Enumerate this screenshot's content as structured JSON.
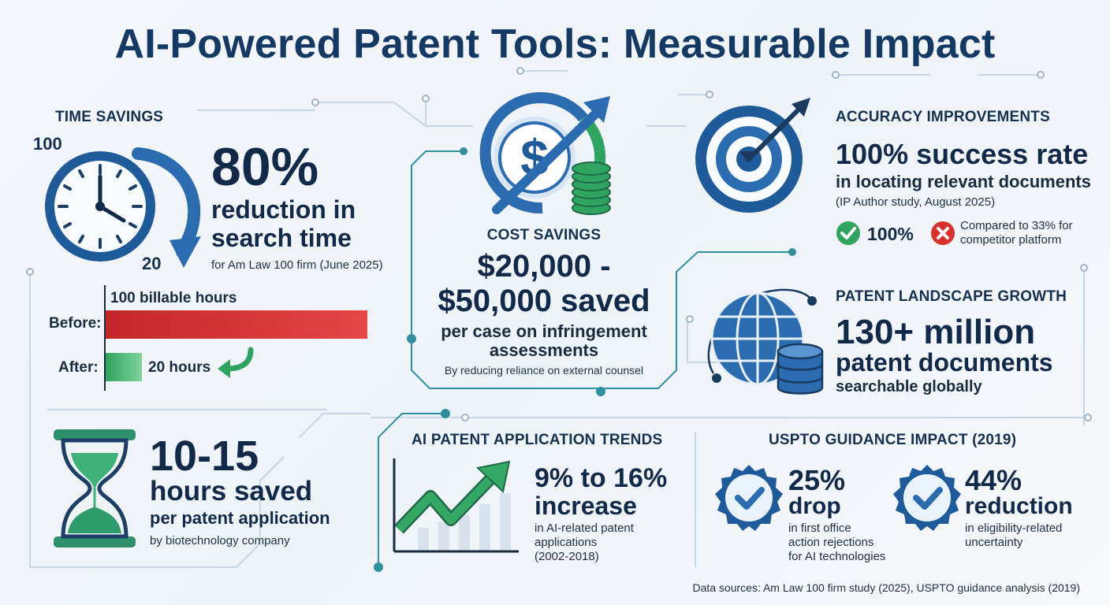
{
  "title": "AI-Powered Patent Tools: Measurable Impact",
  "time_savings": {
    "heading": "TIME SAVINGS",
    "clock_top": "100",
    "clock_bottom": "20",
    "big": "80%",
    "line1": "reduction in",
    "line2": "search time",
    "source": "for Am Law 100 firm (June 2025)",
    "bar_caption": "100 billable hours",
    "before_label": "Before:",
    "after_label": "After:",
    "after_value": "20 hours",
    "before_hours": 100,
    "after_hours": 20,
    "before_color": "#d9302c",
    "after_color": "#2fa360"
  },
  "hours_saved": {
    "big": "10-15",
    "line1": "hours saved",
    "line2": "per patent application",
    "source": "by biotechnology company"
  },
  "cost_savings": {
    "heading": "COST SAVINGS",
    "line1": "$20,000 -",
    "line2": "$50,000 saved",
    "line3": "per case on infringement",
    "line4": "assessments",
    "source": "By reducing reliance on external counsel"
  },
  "accuracy": {
    "heading": "ACCURACY IMPROVEMENTS",
    "big": "100% success rate",
    "line2": "in locating relevant documents",
    "source": "(IP Author study, August 2025)",
    "check_value": "100%",
    "compare_line1": "Compared to 33% for",
    "compare_line2": "competitor platform"
  },
  "landscape": {
    "heading": "PATENT LANDSCAPE GROWTH",
    "big": "130+ million",
    "line2": "patent documents",
    "line3": "searchable globally"
  },
  "trends": {
    "heading": "AI PATENT APPLICATION TRENDS",
    "big1": "9% to 16%",
    "big2": "increase",
    "line1": "in AI-related patent",
    "line2": "applications",
    "line3": "(2002-2018)"
  },
  "uspto": {
    "heading": "USPTO GUIDANCE IMPACT (2019)",
    "a_big": "25%",
    "a_word": "drop",
    "a_line1": "in first office",
    "a_line2": "action rejections",
    "a_line3": "for AI technologies",
    "b_big": "44%",
    "b_word": "reduction",
    "b_line1": "in eligibility-related",
    "b_line2": "uncertainty"
  },
  "footer": "Data sources: Am Law 100 firm study (2025), USPTO guidance analysis (2019)",
  "colors": {
    "navy": "#143a63",
    "blue": "#2b6cb0",
    "green": "#2fa360",
    "red": "#d9302c"
  }
}
